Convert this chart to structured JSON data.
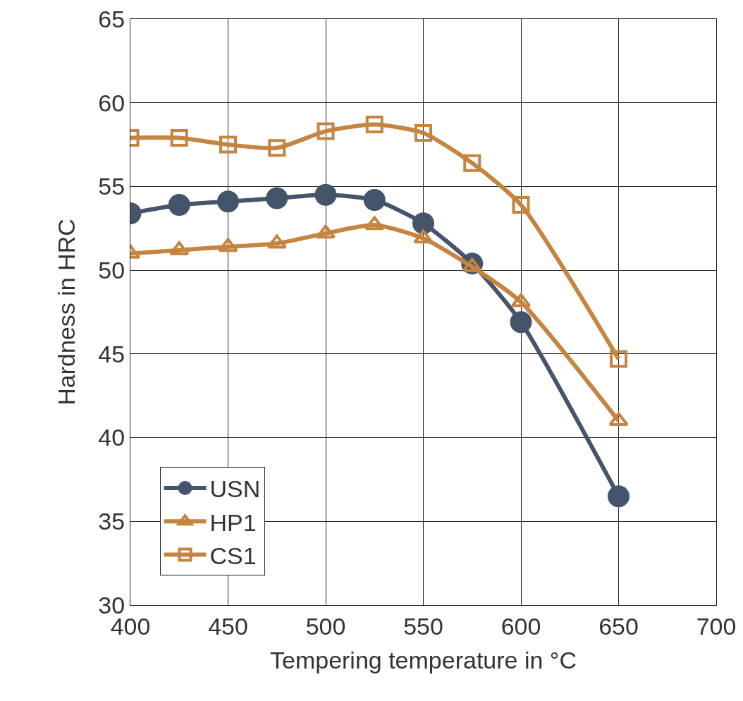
{
  "chart_data": {
    "type": "line",
    "xlabel": "Tempering temperature in °C",
    "ylabel": "Hardness in HRC",
    "x": [
      400,
      425,
      450,
      475,
      500,
      525,
      550,
      575,
      600,
      650
    ],
    "series": [
      {
        "name": "USN",
        "color": "#44546a",
        "marker": "circle",
        "values": [
          53.4,
          53.9,
          54.1,
          54.3,
          54.5,
          54.2,
          52.8,
          50.4,
          46.9,
          36.5
        ]
      },
      {
        "name": "HP1",
        "color": "#c5843f",
        "marker": "triangle",
        "values": [
          51.0,
          51.2,
          51.4,
          51.6,
          52.2,
          52.7,
          51.9,
          50.2,
          48.1,
          41.0
        ]
      },
      {
        "name": "CS1",
        "color": "#c5843f",
        "marker": "square",
        "values": [
          57.9,
          57.9,
          57.5,
          57.3,
          58.3,
          58.7,
          58.2,
          56.4,
          53.9,
          44.7
        ]
      }
    ],
    "xlim": [
      400,
      700
    ],
    "xticks": [
      400,
      450,
      500,
      550,
      600,
      650,
      700
    ],
    "ylim": [
      30,
      65
    ],
    "yticks": [
      30,
      35,
      40,
      45,
      50,
      55,
      60,
      65
    ],
    "grid": true,
    "legend": "bottom left",
    "line_style": "solid"
  }
}
